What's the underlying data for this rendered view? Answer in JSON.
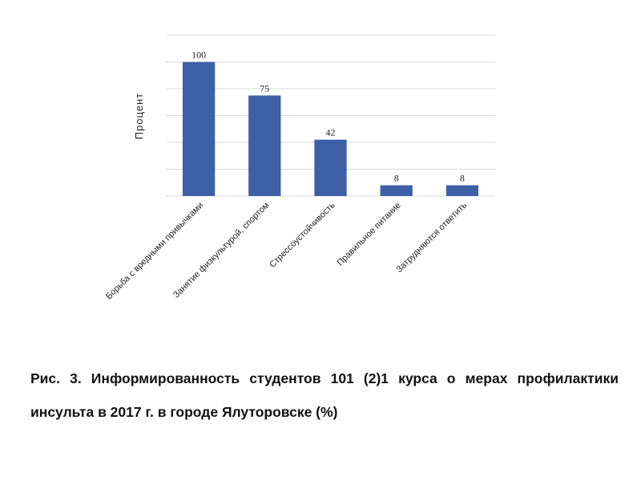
{
  "chart_data": {
    "type": "bar",
    "categories": [
      "Борьба с вредными привычками",
      "Занятие физкультурой, спортом",
      "Стрессоустойчивость",
      "Правильное питание",
      "Затрудняются ответить"
    ],
    "values": [
      100,
      75,
      42,
      8,
      8
    ],
    "data_labels": [
      "100",
      "75",
      "42",
      "8",
      "8"
    ],
    "ylabel": "Процент",
    "xlabel": "",
    "ylim": [
      0,
      120
    ],
    "grid": true,
    "legend": "none",
    "bar_color": "#3d5fa6"
  },
  "caption": "Рис. 3. Информированность студентов 101 (2)1 курса о мерах профилактики инсульта в 2017 г. в городе Ялуторовске (%)"
}
